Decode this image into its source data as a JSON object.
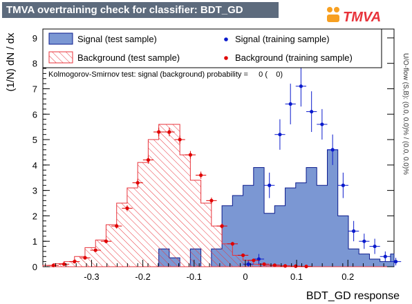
{
  "header": {
    "title": "TMVA overtraining check for classifier: BDT_GD",
    "logo_text": "TMVA"
  },
  "legend": {
    "signal_test": "Signal (test sample)",
    "background_test": "Background (test sample)",
    "signal_train": "Signal (training sample)",
    "background_train": "Background (training sample)"
  },
  "ks_text": "Kolmogorov-Smirnov test: signal (background) probability =     0 (    0)",
  "side_text": "U/O-flow (S,B): (0.0, 0.0)% / (0.0, 0.0)%",
  "colors": {
    "signal_fill": "#7b97d3",
    "signal_line": "#0a1a8c",
    "background": "#e8323a",
    "signal_points": "#0a1acc",
    "background_points": "#e00000",
    "title_bg": "#5d6b7d"
  },
  "chart_data": {
    "type": "histogram",
    "xlabel": "BDT_GD response",
    "ylabel": "(1/N) dN / dx",
    "xlim": [
      -0.395,
      0.29
    ],
    "ylim": [
      0,
      9.35
    ],
    "x_ticks": [
      -0.3,
      -0.2,
      -0.1,
      0,
      0.1,
      0.2
    ],
    "x_tick_labels": [
      "-0.3",
      "-0.2",
      "-0.1",
      "0",
      "0.1",
      "0.2"
    ],
    "y_ticks": [
      0,
      1,
      2,
      3,
      4,
      5,
      6,
      7,
      8,
      9
    ],
    "y_tick_labels": [
      "0",
      "1",
      "2",
      "3",
      "4",
      "5",
      "6",
      "7",
      "8",
      "9"
    ],
    "bin_edges": [
      -0.395,
      -0.3744,
      -0.3539,
      -0.3333,
      -0.3128,
      -0.2922,
      -0.2717,
      -0.2511,
      -0.2306,
      -0.21,
      -0.1895,
      -0.1689,
      -0.1484,
      -0.1278,
      -0.1073,
      -0.0867,
      -0.0662,
      -0.0456,
      -0.0251,
      -0.0045,
      0.016,
      0.0366,
      0.0571,
      0.0777,
      0.0982,
      0.1188,
      0.1393,
      0.1599,
      0.1804,
      0.201,
      0.2215,
      0.2421,
      0.2626,
      0.2832,
      0.29
    ],
    "series": [
      {
        "name": "Signal (test sample)",
        "kind": "filled-histogram",
        "values": [
          0,
          0,
          0,
          0,
          0,
          0,
          0,
          0,
          0,
          0,
          0,
          0.7,
          0.35,
          0,
          0.7,
          0,
          0.7,
          2.4,
          2.8,
          3.2,
          3.9,
          2.1,
          2.4,
          3.1,
          3.3,
          3.9,
          3.2,
          4.6,
          2.0,
          0.7,
          0.5,
          0.3,
          0.2,
          0.5
        ],
        "errors": []
      },
      {
        "name": "Background (test sample)",
        "kind": "hatched-histogram",
        "values": [
          0.05,
          0.12,
          0.2,
          0.4,
          0.75,
          1.05,
          1.65,
          2.5,
          3.1,
          4.1,
          5.0,
          5.6,
          5.6,
          4.4,
          3.4,
          2.5,
          1.6,
          0.9,
          0.45,
          0.25,
          0.1,
          0.05,
          0.02,
          0,
          0,
          0,
          0,
          0,
          0,
          0,
          0,
          0,
          0,
          0
        ],
        "errors": []
      },
      {
        "name": "Signal (training sample)",
        "kind": "points",
        "x": [
          -0.0045,
          0.016,
          0.0366,
          0.0571,
          0.0777,
          0.0982,
          0.1188,
          0.1393,
          0.1599,
          0.1804,
          0.201,
          0.2215,
          0.2421,
          0.2626,
          0.2832
        ],
        "values": [
          0.1,
          0.3,
          3.2,
          5.2,
          6.4,
          7.1,
          6.1,
          5.6,
          4.6,
          3.2,
          1.4,
          1.0,
          0.8,
          0.4,
          0.2
        ],
        "errors": [
          0.15,
          0.2,
          0.5,
          0.6,
          0.8,
          0.8,
          0.8,
          0.6,
          0.6,
          0.5,
          0.4,
          0.3,
          0.3,
          0.2,
          0.15
        ]
      },
      {
        "name": "Background (training sample)",
        "kind": "points",
        "x": [
          -0.3847,
          -0.3641,
          -0.3436,
          -0.323,
          -0.3025,
          -0.2819,
          -0.2614,
          -0.2408,
          -0.2203,
          -0.1997,
          -0.1792,
          -0.1586,
          -0.1381,
          -0.1175,
          -0.097,
          -0.0764,
          -0.0559,
          -0.0353,
          -0.0148,
          0.0058,
          0.0263,
          0.0469,
          0.0674,
          0.088,
          0.1085
        ],
        "values": [
          0.05,
          0.1,
          0.2,
          0.35,
          0.65,
          1.0,
          1.6,
          2.3,
          3.3,
          4.2,
          5.3,
          5.3,
          5.0,
          4.4,
          3.6,
          2.6,
          1.6,
          0.9,
          0.45,
          0.25,
          0.1,
          0.06,
          0.03,
          0.02,
          0.01
        ],
        "errors": [
          0.02,
          0.03,
          0.04,
          0.05,
          0.07,
          0.08,
          0.1,
          0.12,
          0.14,
          0.15,
          0.17,
          0.17,
          0.16,
          0.15,
          0.14,
          0.12,
          0.1,
          0.07,
          0.05,
          0.04,
          0.03,
          0.02,
          0.02,
          0.01,
          0.01
        ]
      }
    ]
  }
}
